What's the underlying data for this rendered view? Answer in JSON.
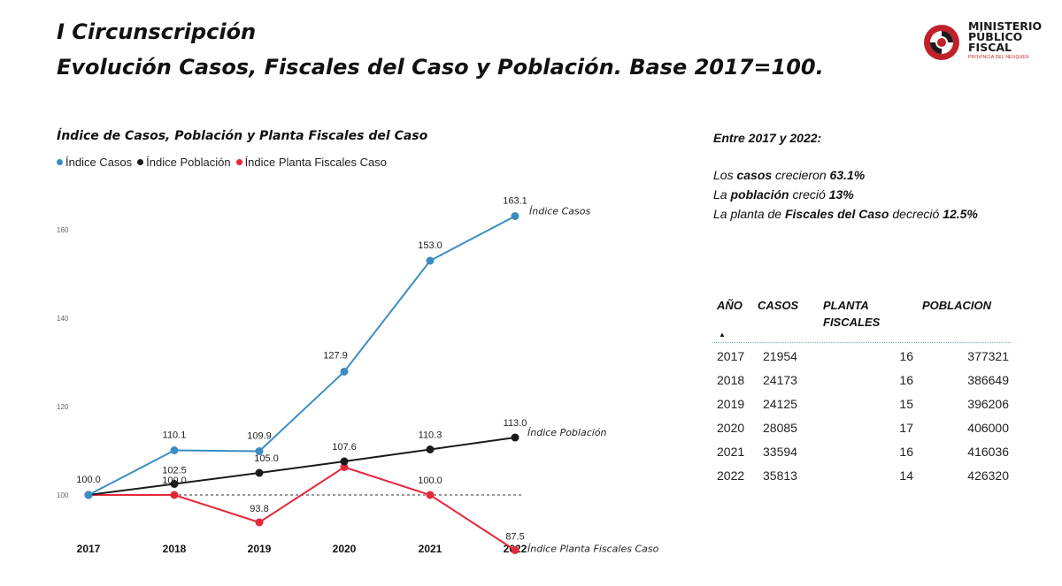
{
  "header": {
    "title_line1": "I Circunscripción",
    "title_line2": "Evolución Casos, Fiscales del Caso y Población.  Base 2017=100."
  },
  "logo": {
    "line1": "MINISTERIO",
    "line2": "PÚBLICO",
    "line3": "FISCAL",
    "subline": "PROVINCIA DEL NEUQUÉN",
    "colors": {
      "red": "#c0202a",
      "dark": "#1a1a1a"
    }
  },
  "chart_data": {
    "type": "line",
    "title": "Índice de Casos, Población y Planta Fiscales del Caso",
    "x": [
      "2017",
      "2018",
      "2019",
      "2020",
      "2021",
      "2022"
    ],
    "y_ticks": [
      "100",
      "120",
      "140",
      "160"
    ],
    "ylim": [
      84,
      172
    ],
    "grid": false,
    "legend_position": "top-left",
    "reference_line": {
      "value": 100,
      "style": "dotted",
      "color": "#999999"
    },
    "series": [
      {
        "name": "Índice Casos",
        "end_label": "Índice Casos",
        "color": "#3a8dc4",
        "values": [
          100.0,
          110.1,
          109.9,
          127.9,
          153.0,
          163.1
        ],
        "labels": [
          "100.0",
          "110.1",
          "109.9",
          "127.9",
          "153.0",
          "163.1"
        ]
      },
      {
        "name": "Índice Población",
        "end_label": "Índice Población",
        "color": "#1a1a1a",
        "values": [
          100.0,
          102.5,
          105.0,
          107.6,
          110.3,
          113.0
        ],
        "labels": [
          "",
          "102.5",
          "105.0",
          "107.6",
          "110.3",
          "113.0"
        ]
      },
      {
        "name": "Índice Planta Fiscales Caso",
        "end_label": "Índice Planta Fiscales Caso",
        "color": "#e5283a",
        "values": [
          100.0,
          100.0,
          93.8,
          106.3,
          100.0,
          87.5
        ],
        "labels": [
          "",
          "100.0",
          "93.8",
          "",
          "100.0",
          "87.5"
        ]
      }
    ]
  },
  "summary": {
    "heading": "Entre 2017 y 2022:",
    "line1_a": "Los ",
    "line1_b": "casos",
    "line1_c": " crecieron ",
    "line1_d": "63.1%",
    "line2_a": "La ",
    "line2_b": "población",
    "line2_c": " creció ",
    "line2_d": "13%",
    "line3_a": "La planta de ",
    "line3_b": "Fiscales del Caso",
    "line3_c": " decreció ",
    "line3_d": "12.5%"
  },
  "table": {
    "headers": {
      "year": "AÑO",
      "casos": "CASOS",
      "planta_1": "PLANTA",
      "planta_2": "FISCALES",
      "poblacion": "POBLACION"
    },
    "sort_icon": "sort-ascending-icon",
    "rows": [
      {
        "year": "2017",
        "casos": "21954",
        "planta": "16",
        "poblacion": "377321"
      },
      {
        "year": "2018",
        "casos": "24173",
        "planta": "16",
        "poblacion": "386649"
      },
      {
        "year": "2019",
        "casos": "24125",
        "planta": "15",
        "poblacion": "396206"
      },
      {
        "year": "2020",
        "casos": "28085",
        "planta": "17",
        "poblacion": "406000"
      },
      {
        "year": "2021",
        "casos": "33594",
        "planta": "16",
        "poblacion": "416036"
      },
      {
        "year": "2022",
        "casos": "35813",
        "planta": "14",
        "poblacion": "426320"
      }
    ]
  }
}
